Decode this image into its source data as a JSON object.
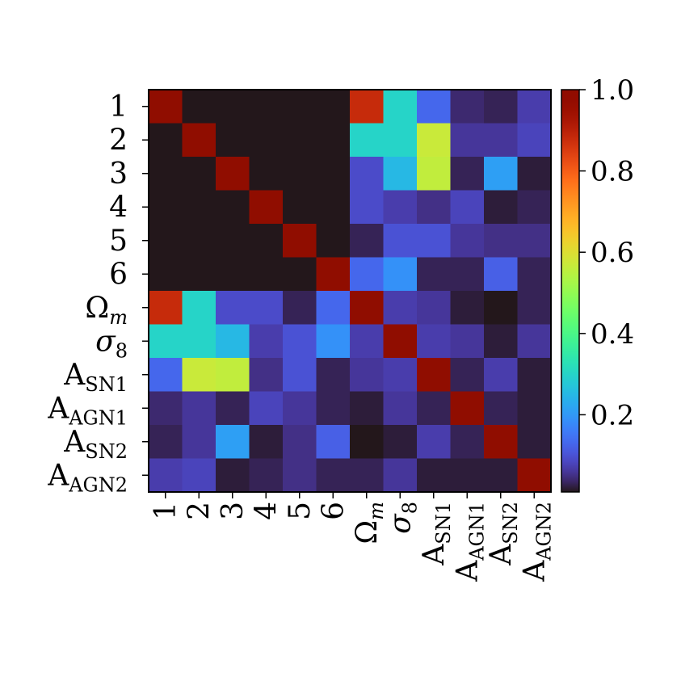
{
  "chart_data": {
    "type": "heatmap",
    "title": "",
    "xlabel": "",
    "ylabel": "",
    "labels": [
      {
        "main": "1",
        "italic": false,
        "sub": ""
      },
      {
        "main": "2",
        "italic": false,
        "sub": ""
      },
      {
        "main": "3",
        "italic": false,
        "sub": ""
      },
      {
        "main": "4",
        "italic": false,
        "sub": ""
      },
      {
        "main": "5",
        "italic": false,
        "sub": ""
      },
      {
        "main": "6",
        "italic": false,
        "sub": ""
      },
      {
        "main": "Ω",
        "italic": false,
        "sub": "m"
      },
      {
        "main": "σ",
        "italic": true,
        "sub": "8"
      },
      {
        "main": "A",
        "italic": false,
        "sub": "SN1"
      },
      {
        "main": "A",
        "italic": false,
        "sub": "AGN1"
      },
      {
        "main": "A",
        "italic": false,
        "sub": "SN2"
      },
      {
        "main": "A",
        "italic": false,
        "sub": "AGN2"
      }
    ],
    "matrix": [
      [
        1.0,
        0.01,
        0.01,
        0.01,
        0.01,
        0.01,
        0.88,
        0.3,
        0.13,
        0.04,
        0.03,
        0.07
      ],
      [
        0.01,
        1.0,
        0.01,
        0.01,
        0.01,
        0.01,
        0.3,
        0.3,
        0.57,
        0.06,
        0.06,
        0.08
      ],
      [
        0.01,
        0.01,
        1.0,
        0.01,
        0.01,
        0.01,
        0.09,
        0.25,
        0.56,
        0.03,
        0.21,
        0.02
      ],
      [
        0.01,
        0.01,
        0.01,
        1.0,
        0.01,
        0.01,
        0.09,
        0.07,
        0.05,
        0.08,
        0.02,
        0.03
      ],
      [
        0.01,
        0.01,
        0.01,
        0.01,
        1.0,
        0.01,
        0.03,
        0.1,
        0.1,
        0.06,
        0.05,
        0.05
      ],
      [
        0.01,
        0.01,
        0.01,
        0.01,
        0.01,
        1.0,
        0.13,
        0.19,
        0.03,
        0.03,
        0.12,
        0.03
      ],
      [
        0.88,
        0.3,
        0.09,
        0.09,
        0.03,
        0.13,
        1.0,
        0.07,
        0.06,
        0.02,
        0.01,
        0.03
      ],
      [
        0.3,
        0.3,
        0.25,
        0.07,
        0.1,
        0.19,
        0.07,
        1.0,
        0.07,
        0.06,
        0.02,
        0.06
      ],
      [
        0.13,
        0.57,
        0.56,
        0.05,
        0.1,
        0.03,
        0.06,
        0.07,
        1.0,
        0.03,
        0.07,
        0.02
      ],
      [
        0.04,
        0.06,
        0.03,
        0.08,
        0.06,
        0.03,
        0.02,
        0.06,
        0.03,
        1.0,
        0.03,
        0.02
      ],
      [
        0.03,
        0.06,
        0.21,
        0.02,
        0.05,
        0.12,
        0.01,
        0.02,
        0.07,
        0.03,
        1.0,
        0.02
      ],
      [
        0.07,
        0.08,
        0.02,
        0.03,
        0.05,
        0.03,
        0.03,
        0.06,
        0.02,
        0.02,
        0.02,
        1.0
      ]
    ],
    "colorbar": {
      "colormap": "turbo",
      "range": [
        0.01,
        1.0
      ],
      "ticks": [
        0.2,
        0.4,
        0.6,
        0.8,
        1.0
      ],
      "tick_labels": [
        "0.2",
        "0.4",
        "0.6",
        "0.8",
        "1.0"
      ]
    },
    "grid": false,
    "legend": "none"
  }
}
